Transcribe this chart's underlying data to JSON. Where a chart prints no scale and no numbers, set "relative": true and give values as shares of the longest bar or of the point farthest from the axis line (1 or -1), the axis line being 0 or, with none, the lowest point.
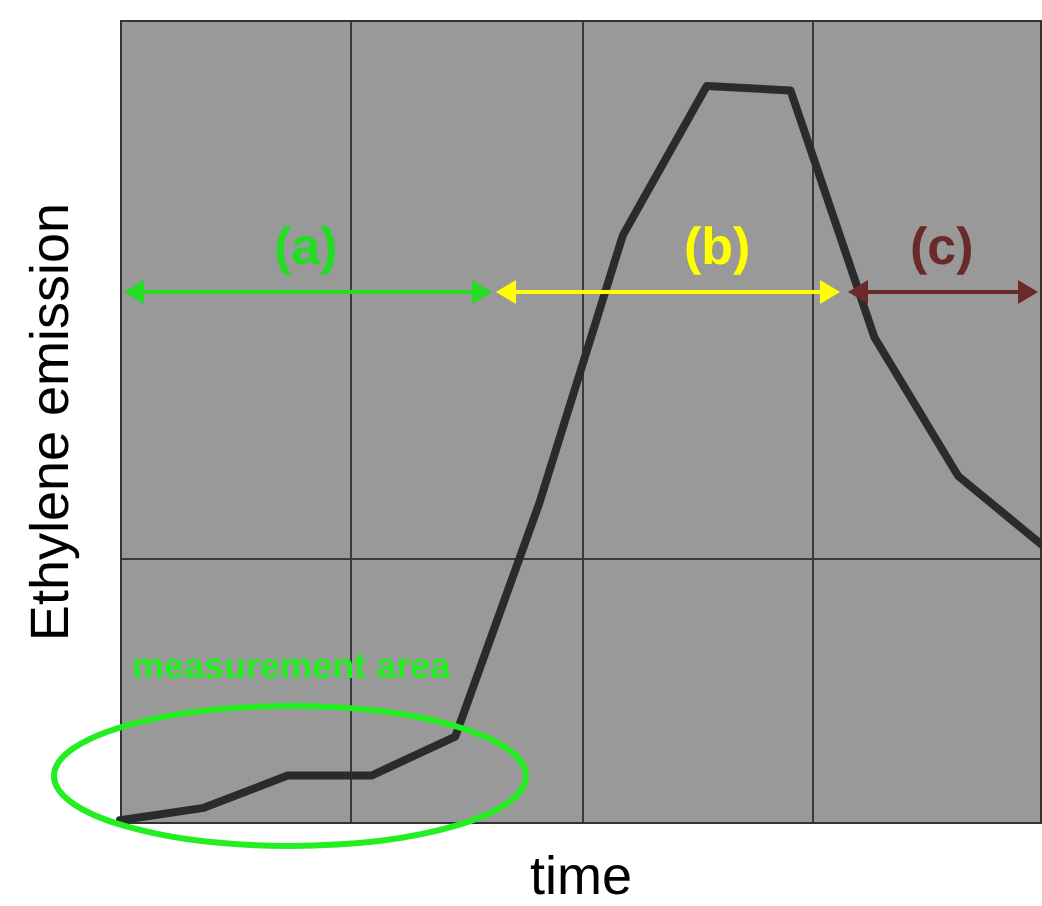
{
  "chart_data": {
    "type": "line",
    "relative": true,
    "xlabel": "time",
    "ylabel": "Ethylene emission",
    "grid": true,
    "legend": false,
    "marker": "none",
    "line_style": "solid",
    "categories": [
      null,
      null,
      null,
      null,
      null,
      null,
      null,
      null,
      null,
      null,
      null,
      null
    ],
    "series": [
      {
        "color": "#2b2b2b",
        "values": [
          0,
          0.017,
          0.061,
          0.061,
          0.114,
          0.431,
          0.797,
          1,
          0.994,
          0.658,
          0.469,
          0.375
        ]
      }
    ],
    "annotations": [
      "(a)",
      "(b)",
      "(c)",
      "measurement area"
    ]
  }
}
